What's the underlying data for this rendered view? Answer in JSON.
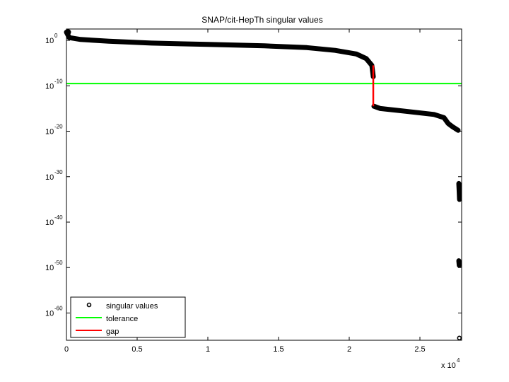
{
  "chart_data": {
    "type": "line",
    "title": "SNAP/cit-HepTh singular values",
    "xlabel": "",
    "ylabel": "",
    "x_multiplier_label": "x 10",
    "x_multiplier_exp": "4",
    "xlim": [
      0,
      27950
    ],
    "ylim_log10": [
      2.5,
      -66
    ],
    "yscale": "log",
    "grid": false,
    "legend_position": "lower left",
    "x_ticks": [
      {
        "value": 0,
        "label": "0"
      },
      {
        "value": 5000,
        "label": "0.5"
      },
      {
        "value": 10000,
        "label": "1"
      },
      {
        "value": 15000,
        "label": "1.5"
      },
      {
        "value": 20000,
        "label": "2"
      },
      {
        "value": 25000,
        "label": "2.5"
      }
    ],
    "y_ticks": [
      {
        "exp": 0,
        "base": "10",
        "sup": "0"
      },
      {
        "exp": -10,
        "base": "10",
        "sup": "-10"
      },
      {
        "exp": -20,
        "base": "10",
        "sup": "-20"
      },
      {
        "exp": -30,
        "base": "10",
        "sup": "-30"
      },
      {
        "exp": -40,
        "base": "10",
        "sup": "-40"
      },
      {
        "exp": -50,
        "base": "10",
        "sup": "-50"
      },
      {
        "exp": -60,
        "base": "10",
        "sup": "-60"
      }
    ],
    "series": [
      {
        "name": "singular values",
        "style": "markers",
        "color": "#000000",
        "points_log10": [
          [
            0,
            1.8
          ],
          [
            200,
            0.6
          ],
          [
            1000,
            0.2
          ],
          [
            3000,
            -0.2
          ],
          [
            6000,
            -0.6
          ],
          [
            10000,
            -0.9
          ],
          [
            14000,
            -1.2
          ],
          [
            17000,
            -1.6
          ],
          [
            19000,
            -2.2
          ],
          [
            20500,
            -3.0
          ],
          [
            21200,
            -4.0
          ],
          [
            21600,
            -5.5
          ],
          [
            21700,
            -8.0
          ],
          [
            21750,
            -14.5
          ],
          [
            22200,
            -15.0
          ],
          [
            24000,
            -15.6
          ],
          [
            26000,
            -16.3
          ],
          [
            26700,
            -17.0
          ],
          [
            27000,
            -18.3
          ],
          [
            27300,
            -19.0
          ],
          [
            27700,
            -19.8
          ],
          [
            27750,
            -31.5
          ],
          [
            27780,
            -33.5
          ],
          [
            27800,
            -35.0
          ],
          [
            27750,
            -48.5
          ],
          [
            27780,
            -49.5
          ],
          [
            27790,
            -65.5
          ]
        ]
      },
      {
        "name": "tolerance",
        "style": "line",
        "color": "#00ff00",
        "value_log10": -9.5
      },
      {
        "name": "gap",
        "style": "line",
        "color": "#ff0000",
        "x": 21700,
        "from_log10": -5.5,
        "to_log10": -14.5
      }
    ],
    "legend": [
      {
        "label": "singular values",
        "marker": "circle"
      },
      {
        "label": "tolerance",
        "color": "#00ff00"
      },
      {
        "label": "gap",
        "color": "#ff0000"
      }
    ]
  }
}
